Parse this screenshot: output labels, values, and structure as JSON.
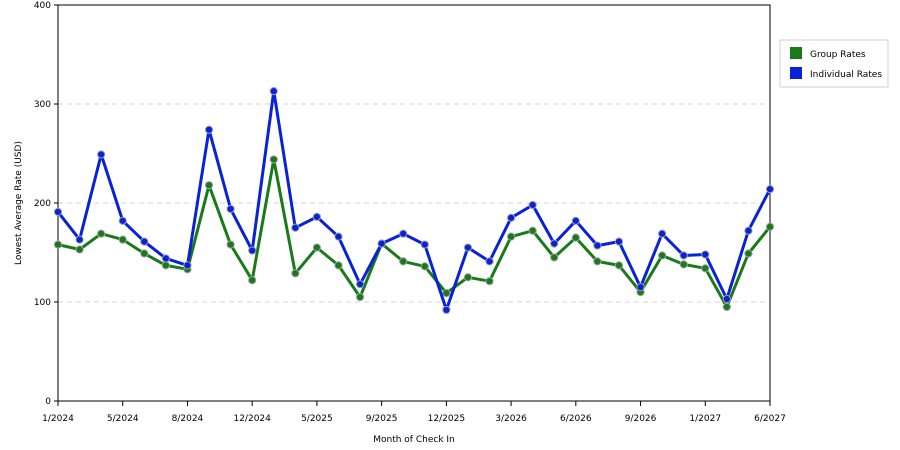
{
  "chart_data": {
    "type": "line",
    "xlabel": "Month of Check In",
    "ylabel": "Lowest Average Rate (USD)",
    "ylim": [
      0,
      400
    ],
    "y_ticks": [
      "0",
      "100",
      "200",
      "300",
      "400"
    ],
    "x_tick_labels": [
      {
        "index": 0,
        "label": "1/2024"
      },
      {
        "index": 3,
        "label": "5/2024"
      },
      {
        "index": 6,
        "label": "8/2024"
      },
      {
        "index": 9,
        "label": "12/2024"
      },
      {
        "index": 12,
        "label": "5/2025"
      },
      {
        "index": 15,
        "label": "9/2025"
      },
      {
        "index": 18,
        "label": "12/2025"
      },
      {
        "index": 21,
        "label": "3/2026"
      },
      {
        "index": 24,
        "label": "6/2026"
      },
      {
        "index": 27,
        "label": "9/2026"
      },
      {
        "index": 30,
        "label": "1/2027"
      },
      {
        "index": 33,
        "label": "6/2027"
      }
    ],
    "grid": "horizontal dashed",
    "legend_position": "top-right",
    "series": [
      {
        "name": "Group Rates",
        "color": "#1a7a1a",
        "values": [
          158,
          153,
          169,
          163,
          149,
          137,
          133,
          218,
          158,
          122,
          244,
          129,
          155,
          137,
          105,
          159,
          141,
          136,
          109,
          125,
          121,
          166,
          172,
          145,
          165,
          141,
          137,
          110,
          147,
          138,
          134,
          95,
          149,
          176
        ]
      },
      {
        "name": "Individual Rates",
        "color": "#0a22d6",
        "values": [
          191,
          163,
          249,
          182,
          161,
          144,
          137,
          274,
          194,
          152,
          313,
          175,
          186,
          166,
          118,
          159,
          169,
          158,
          92,
          155,
          141,
          185,
          198,
          159,
          182,
          157,
          161,
          115,
          169,
          147,
          148,
          103,
          172,
          214
        ]
      }
    ]
  }
}
